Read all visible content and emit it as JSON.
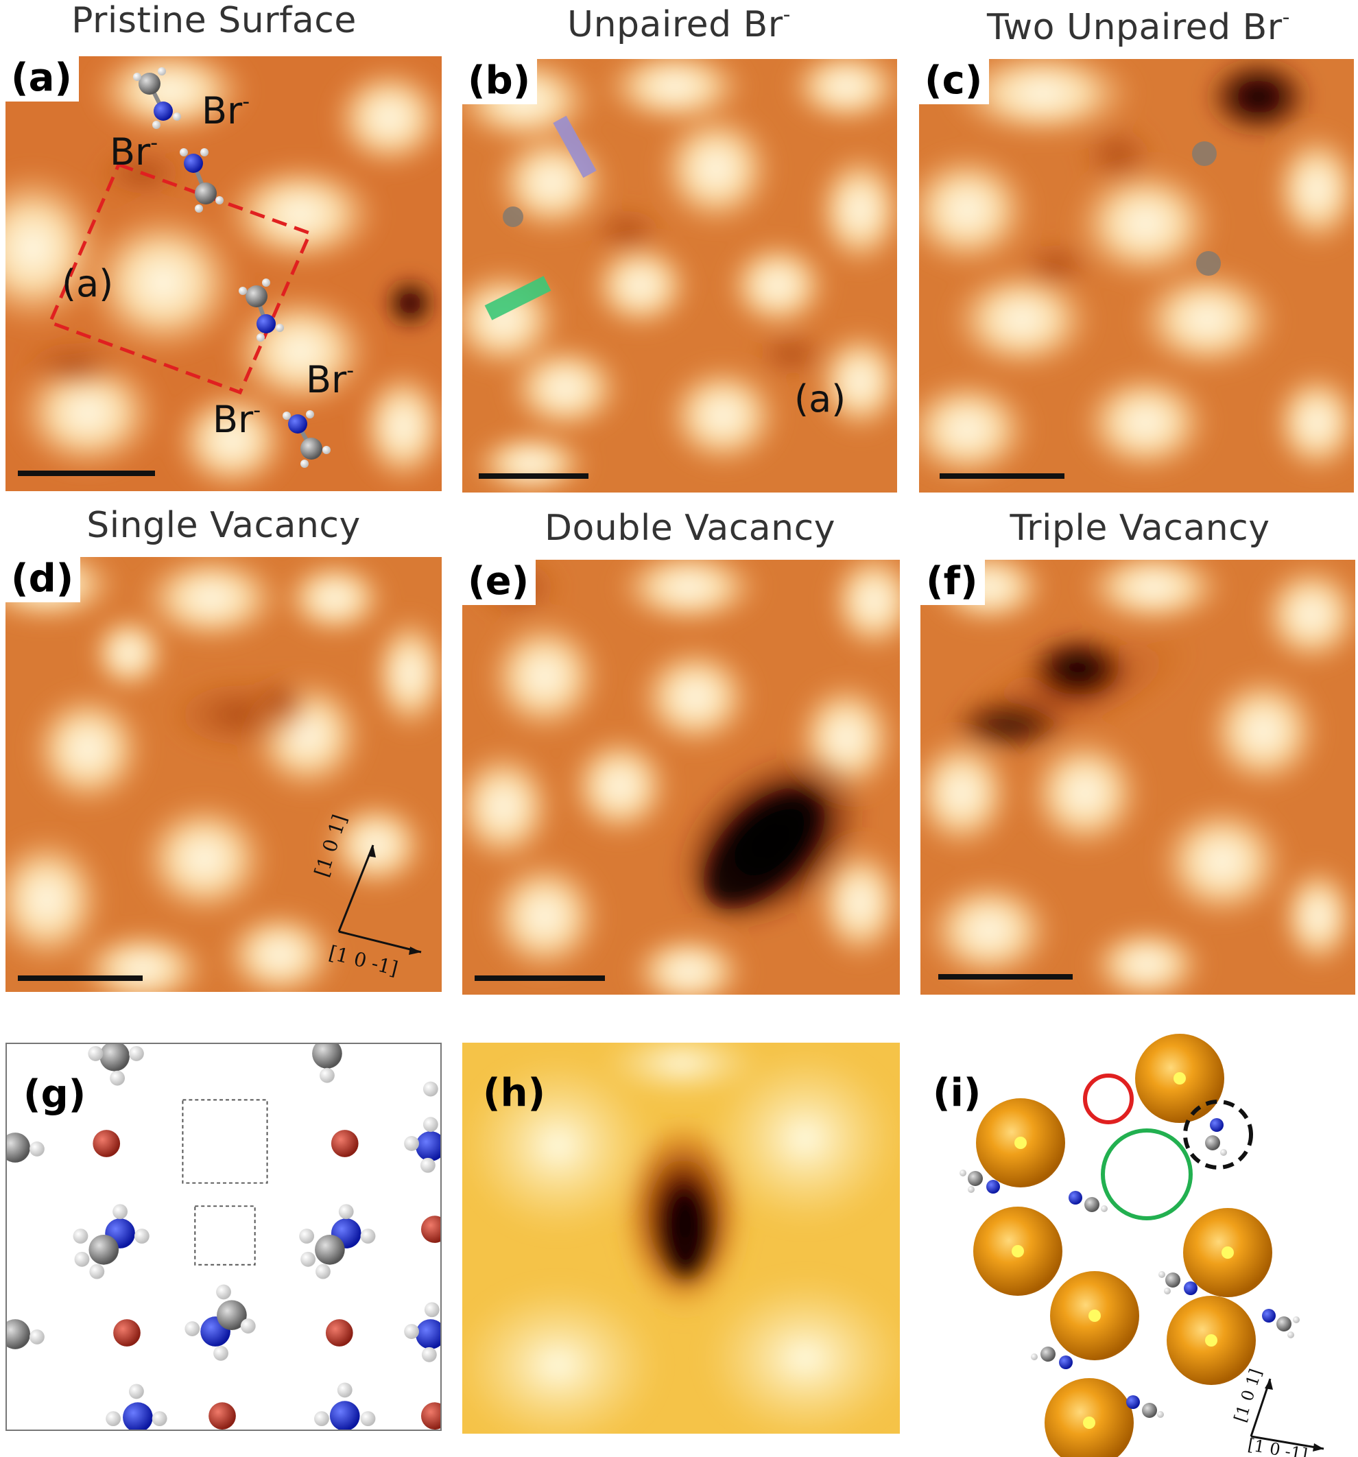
{
  "titles": {
    "a": "Pristine Surface",
    "b": "Unpaired Br",
    "c": "Two Unpaired Br",
    "d": "Single Vacancy",
    "e": "Double Vacancy",
    "f": "Triple Vacancy",
    "superscript": "-"
  },
  "labels": {
    "a": "(a)",
    "b": "(b)",
    "c": "(c)",
    "d": "(d)",
    "e": "(e)",
    "f": "(f)",
    "g": "(g)",
    "h": "(h)",
    "i": "(i)"
  },
  "annotations": {
    "br": "Br",
    "br_sup": "-",
    "cell_label_a": "(a)",
    "cell_label_b": "(a)"
  },
  "directions": {
    "d_up": "[1 0 1]",
    "d_right": "[1 0 -1]",
    "i_up": "[1 0 1]",
    "i_right": "[1 0 -1]"
  },
  "colors": {
    "stm_bright": "#fff6dc",
    "stm_mid": "#e88a3a",
    "stm_dark": "#000000",
    "cell_outline": "#e02020",
    "br_atom": "#c84a3a",
    "n_atom": "#1a2fd6",
    "c_atom": "#8a8a8a",
    "h_atom": "#ffffff",
    "pb_sphere": "#e8940a",
    "green_marker": "#3cc878",
    "purple_marker": "#9a8fd0",
    "grey_dot": "#8a7a6a"
  }
}
